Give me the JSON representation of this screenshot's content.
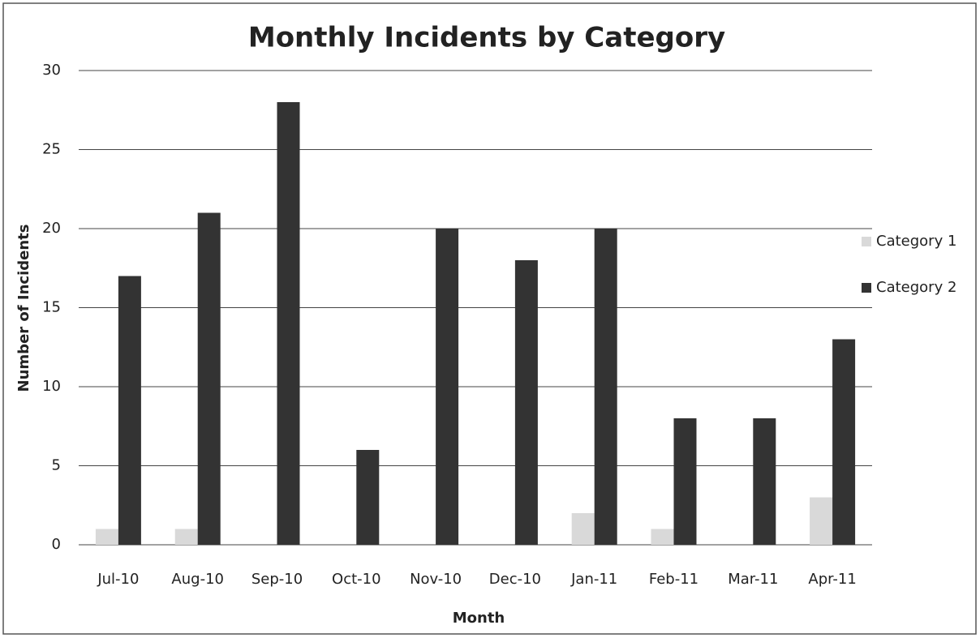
{
  "chart_data": {
    "type": "bar",
    "title": "Monthly Incidents by Category",
    "x_label": "Month",
    "y_label": "Number of Incidents",
    "categories": [
      "Jul-10",
      "Aug-10",
      "Sep-10",
      "Oct-10",
      "Nov-10",
      "Dec-10",
      "Jan-11",
      "Feb-11",
      "Mar-11",
      "Apr-11"
    ],
    "series": [
      {
        "name": "Category 1",
        "color": "#d9d9d9",
        "values": [
          1,
          1,
          0,
          0,
          0,
          0,
          2,
          1,
          0,
          3
        ]
      },
      {
        "name": "Category 2",
        "color": "#333333",
        "values": [
          17,
          21,
          28,
          6,
          20,
          18,
          20,
          8,
          8,
          13
        ]
      }
    ],
    "ylim": [
      0,
      30
    ],
    "yticks": [
      0,
      5,
      10,
      15,
      20,
      25,
      30
    ],
    "grid": true,
    "legend": "right"
  }
}
